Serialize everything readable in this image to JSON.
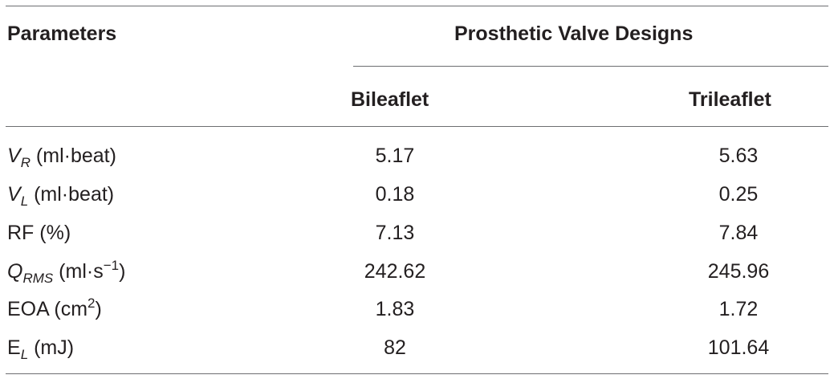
{
  "table": {
    "header": {
      "parameters": "Parameters",
      "group": "Prosthetic Valve Designs",
      "col1": "Bileaflet",
      "col2": "Trileaflet"
    },
    "rows": [
      {
        "symbol": "V",
        "subscript": "R",
        "superscript": "",
        "unit": " (ml·beat)",
        "symbol_italic": true,
        "bileaflet": "5.17",
        "trileaflet": "5.63"
      },
      {
        "symbol": "V",
        "subscript": "L",
        "superscript": "",
        "unit": " (ml·beat)",
        "symbol_italic": true,
        "bileaflet": "0.18",
        "trileaflet": "0.25"
      },
      {
        "symbol": "RF",
        "subscript": "",
        "superscript": "",
        "unit": " (%)",
        "symbol_italic": false,
        "bileaflet": "7.13",
        "trileaflet": "7.84"
      },
      {
        "symbol": "Q",
        "subscript": "RMS",
        "superscript": "",
        "unit": " (ml·s",
        "unit_sup": "−1",
        "unit_close": ")",
        "symbol_italic": true,
        "bileaflet": "242.62",
        "trileaflet": "245.96"
      },
      {
        "symbol": "EOA",
        "subscript": "",
        "superscript": "",
        "unit": " (cm",
        "unit_sup": "2",
        "unit_close": ")",
        "symbol_italic": false,
        "bileaflet": "1.83",
        "trileaflet": "1.72"
      },
      {
        "symbol": "E",
        "subscript": "L",
        "superscript": "",
        "unit": " (mJ)",
        "symbol_italic": false,
        "bileaflet": "82",
        "trileaflet": "101.64"
      }
    ]
  }
}
